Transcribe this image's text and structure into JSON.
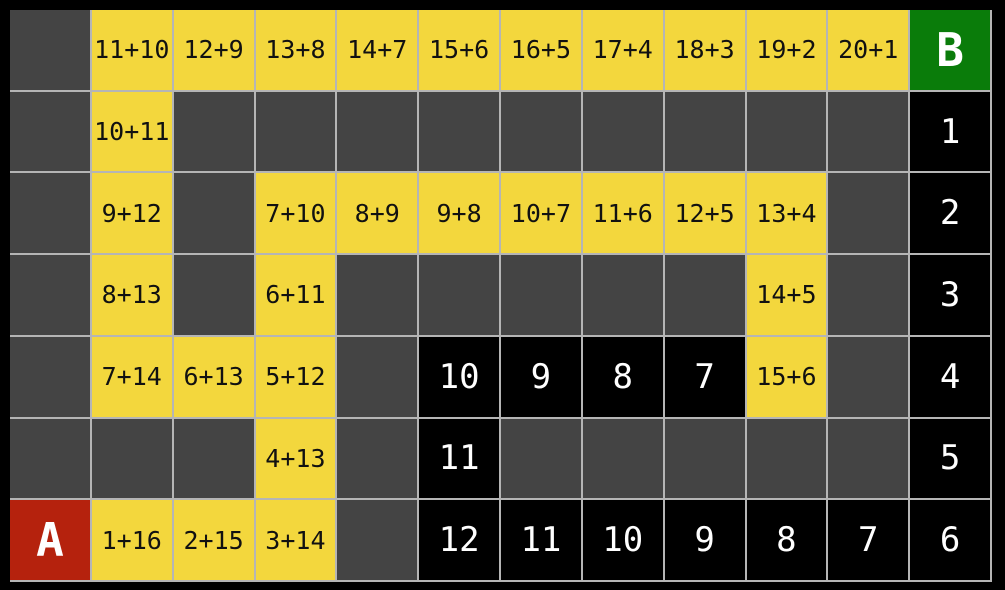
{
  "board": {
    "rows": 7,
    "cols": 12,
    "start_label": "A",
    "end_label": "B",
    "cells": [
      [
        {
          "k": "wall"
        },
        {
          "k": "expr",
          "t": "11+10"
        },
        {
          "k": "expr",
          "t": "12+9"
        },
        {
          "k": "expr",
          "t": "13+8"
        },
        {
          "k": "expr",
          "t": "14+7"
        },
        {
          "k": "expr",
          "t": "15+6"
        },
        {
          "k": "expr",
          "t": "16+5"
        },
        {
          "k": "expr",
          "t": "17+4"
        },
        {
          "k": "expr",
          "t": "18+3"
        },
        {
          "k": "expr",
          "t": "19+2"
        },
        {
          "k": "expr",
          "t": "20+1"
        },
        {
          "k": "end",
          "t": "B"
        }
      ],
      [
        {
          "k": "wall"
        },
        {
          "k": "expr",
          "t": "10+11"
        },
        {
          "k": "wall"
        },
        {
          "k": "wall"
        },
        {
          "k": "wall"
        },
        {
          "k": "wall"
        },
        {
          "k": "wall"
        },
        {
          "k": "wall"
        },
        {
          "k": "wall"
        },
        {
          "k": "wall"
        },
        {
          "k": "wall"
        },
        {
          "k": "num",
          "t": "1"
        }
      ],
      [
        {
          "k": "wall"
        },
        {
          "k": "expr",
          "t": "9+12"
        },
        {
          "k": "wall"
        },
        {
          "k": "expr",
          "t": "7+10"
        },
        {
          "k": "expr",
          "t": "8+9"
        },
        {
          "k": "expr",
          "t": "9+8"
        },
        {
          "k": "expr",
          "t": "10+7"
        },
        {
          "k": "expr",
          "t": "11+6"
        },
        {
          "k": "expr",
          "t": "12+5"
        },
        {
          "k": "expr",
          "t": "13+4"
        },
        {
          "k": "wall"
        },
        {
          "k": "num",
          "t": "2"
        }
      ],
      [
        {
          "k": "wall"
        },
        {
          "k": "expr",
          "t": "8+13"
        },
        {
          "k": "wall"
        },
        {
          "k": "expr",
          "t": "6+11"
        },
        {
          "k": "wall"
        },
        {
          "k": "wall"
        },
        {
          "k": "wall"
        },
        {
          "k": "wall"
        },
        {
          "k": "wall"
        },
        {
          "k": "expr",
          "t": "14+5"
        },
        {
          "k": "wall"
        },
        {
          "k": "num",
          "t": "3"
        }
      ],
      [
        {
          "k": "wall"
        },
        {
          "k": "expr",
          "t": "7+14"
        },
        {
          "k": "expr",
          "t": "6+13"
        },
        {
          "k": "expr",
          "t": "5+12"
        },
        {
          "k": "wall"
        },
        {
          "k": "num",
          "t": "10"
        },
        {
          "k": "num",
          "t": "9"
        },
        {
          "k": "num",
          "t": "8"
        },
        {
          "k": "num",
          "t": "7"
        },
        {
          "k": "expr",
          "t": "15+6"
        },
        {
          "k": "wall"
        },
        {
          "k": "num",
          "t": "4"
        }
      ],
      [
        {
          "k": "wall"
        },
        {
          "k": "wall"
        },
        {
          "k": "wall"
        },
        {
          "k": "expr",
          "t": "4+13"
        },
        {
          "k": "wall"
        },
        {
          "k": "num",
          "t": "11"
        },
        {
          "k": "wall"
        },
        {
          "k": "wall"
        },
        {
          "k": "wall"
        },
        {
          "k": "wall"
        },
        {
          "k": "wall"
        },
        {
          "k": "num",
          "t": "5"
        }
      ],
      [
        {
          "k": "start",
          "t": "A"
        },
        {
          "k": "expr",
          "t": "1+16"
        },
        {
          "k": "expr",
          "t": "2+15"
        },
        {
          "k": "expr",
          "t": "3+14"
        },
        {
          "k": "wall"
        },
        {
          "k": "num",
          "t": "12"
        },
        {
          "k": "num",
          "t": "11"
        },
        {
          "k": "num",
          "t": "10"
        },
        {
          "k": "num",
          "t": "9"
        },
        {
          "k": "num",
          "t": "8"
        },
        {
          "k": "num",
          "t": "7"
        },
        {
          "k": "num",
          "t": "6"
        }
      ]
    ]
  },
  "colors": {
    "background": "#000000",
    "wall_gray": "#444444",
    "path_yellow": "#f3d73d",
    "number_tile_black": "#000000",
    "start_red": "#b5220d",
    "end_green": "#0a7c0a",
    "grid_line": "#b5b5b5",
    "expression_text": "#111111",
    "number_text": "#ffffff"
  }
}
